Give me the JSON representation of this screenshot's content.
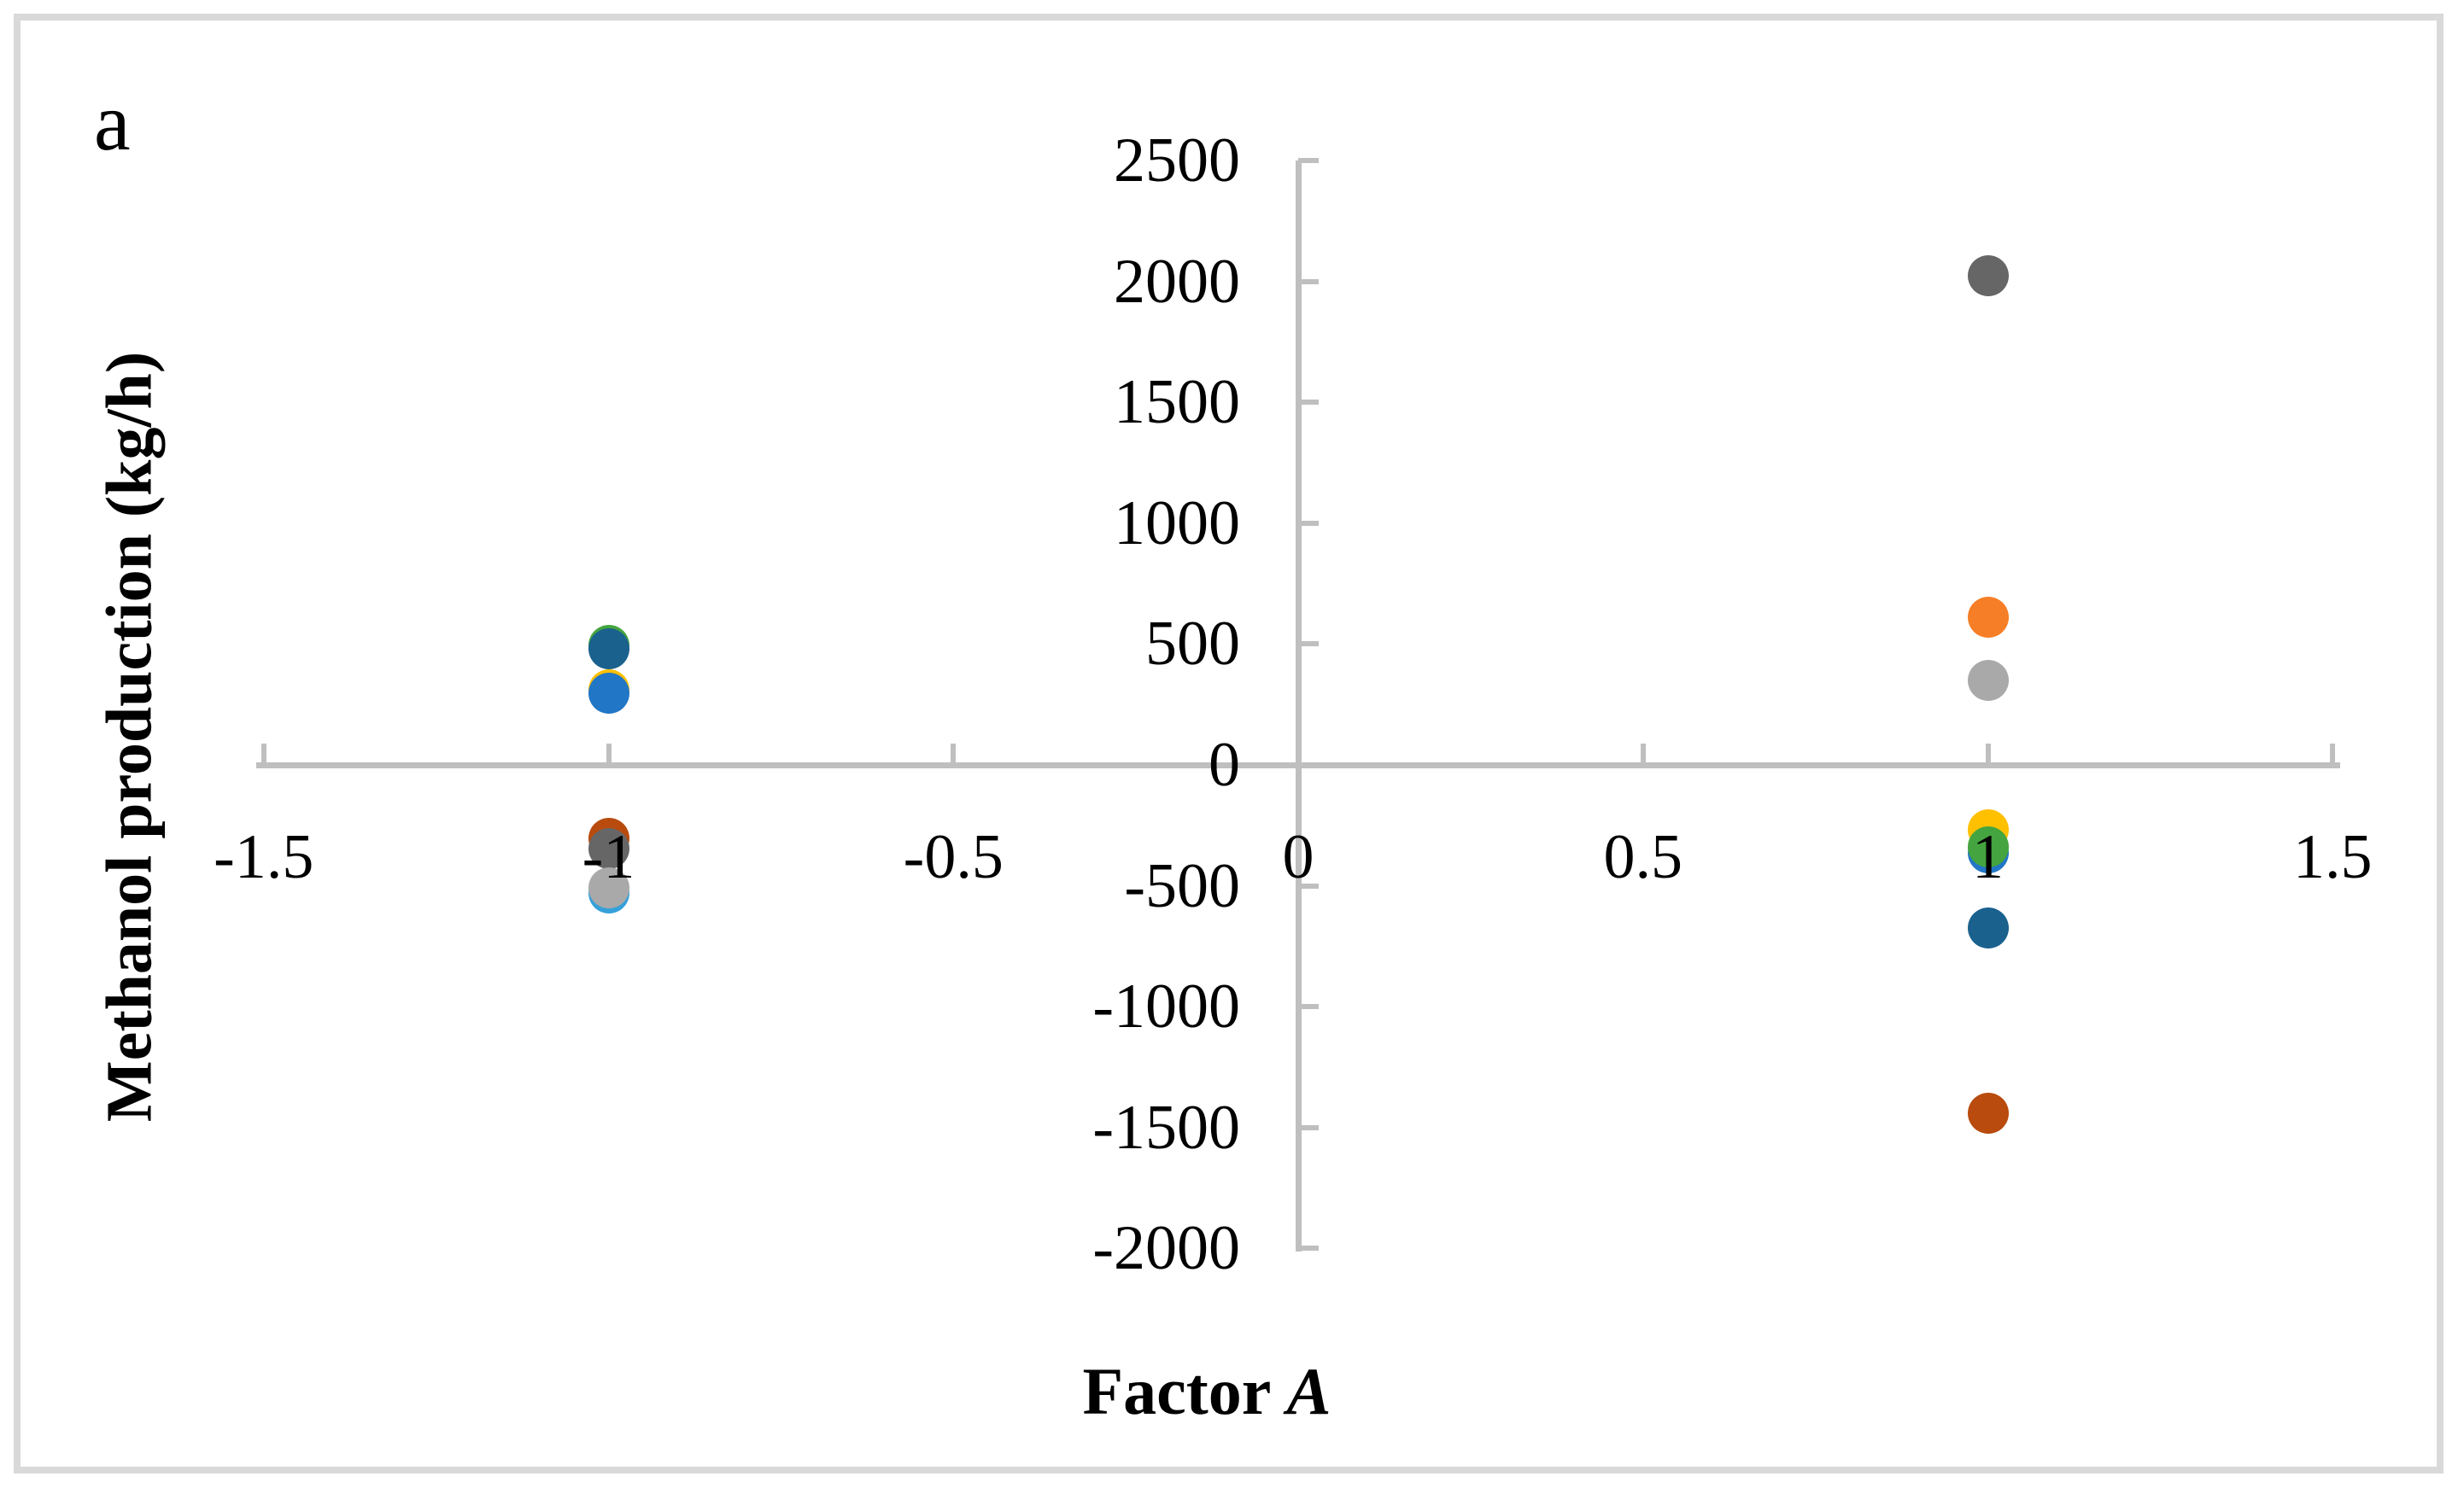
{
  "figure": {
    "panel_label": "a",
    "border_color": "#d9d9d9",
    "background_color": "#ffffff"
  },
  "chart_data": {
    "type": "scatter",
    "title": "",
    "xlabel_regular": "Factor ",
    "xlabel_italic": "A",
    "ylabel": "Methanol production (kg/h)",
    "xlim": [
      -1.5,
      1.5
    ],
    "ylim": [
      -2000,
      2500
    ],
    "grid": false,
    "legend": "none",
    "axis_color": "#bfbfbf",
    "tick_style": "inside",
    "x_ticks": [
      {
        "value": -1.5,
        "label": "-1.5"
      },
      {
        "value": -1,
        "label": "-1"
      },
      {
        "value": -0.5,
        "label": "-0.5"
      },
      {
        "value": 0,
        "label": "0"
      },
      {
        "value": 0.5,
        "label": "0.5"
      },
      {
        "value": 1,
        "label": "1"
      },
      {
        "value": 1.5,
        "label": "1.5"
      }
    ],
    "y_ticks": [
      {
        "value": 2500,
        "label": "2500"
      },
      {
        "value": 2000,
        "label": "2000"
      },
      {
        "value": 1500,
        "label": "1500"
      },
      {
        "value": 1000,
        "label": "1000"
      },
      {
        "value": 500,
        "label": "500"
      },
      {
        "value": 0,
        "label": "0"
      },
      {
        "value": -500,
        "label": "-500"
      },
      {
        "value": -1000,
        "label": "-1000"
      },
      {
        "value": -1500,
        "label": "-1500"
      },
      {
        "value": -2000,
        "label": "-2000"
      }
    ],
    "series": [
      {
        "name": "light-blue",
        "color": "#36a0d9",
        "points": [
          {
            "x": -1,
            "y": -530
          }
        ]
      },
      {
        "name": "rust",
        "color": "#b84b0d",
        "points": [
          {
            "x": -1,
            "y": -305
          },
          {
            "x": 1,
            "y": -1440
          }
        ]
      },
      {
        "name": "yellow",
        "color": "#ffc000",
        "points": [
          {
            "x": -1,
            "y": 310
          },
          {
            "x": 1,
            "y": -270
          }
        ]
      },
      {
        "name": "blue",
        "color": "#2276c6",
        "points": [
          {
            "x": -1,
            "y": 295
          },
          {
            "x": 1,
            "y": -365
          }
        ]
      },
      {
        "name": "green",
        "color": "#44a43f",
        "points": [
          {
            "x": -1,
            "y": 495
          },
          {
            "x": 1,
            "y": -340
          }
        ]
      },
      {
        "name": "teal-blue",
        "color": "#1a618e",
        "points": [
          {
            "x": -1,
            "y": 480
          },
          {
            "x": 1,
            "y": -675
          }
        ]
      },
      {
        "name": "orange",
        "color": "#f57e27",
        "points": [
          {
            "x": 1,
            "y": 610
          }
        ]
      },
      {
        "name": "dark-gray",
        "color": "#666666",
        "points": [
          {
            "x": -1,
            "y": -345
          },
          {
            "x": 1,
            "y": 2025
          }
        ]
      },
      {
        "name": "light-gray",
        "color": "#a9a9a9",
        "points": [
          {
            "x": -1,
            "y": -510
          },
          {
            "x": 1,
            "y": 350
          }
        ]
      }
    ]
  }
}
